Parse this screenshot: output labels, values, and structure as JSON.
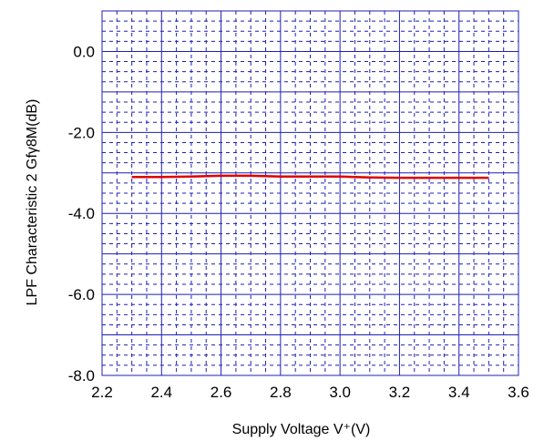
{
  "chart_data": {
    "type": "line",
    "title": "",
    "xlabel": "Supply Voltage  V⁺(V)",
    "ylabel": "LPF Characteristic 2  Gfγ8M(dB)",
    "xlim": [
      2.2,
      3.6
    ],
    "ylim": [
      -8.0,
      1.0
    ],
    "x_ticks": [
      2.2,
      2.4,
      2.6,
      2.8,
      3.0,
      3.2,
      3.4,
      3.6
    ],
    "y_ticks": [
      0.0,
      -2.0,
      -4.0,
      -6.0,
      -8.0
    ],
    "x_tick_labels": [
      "2.2",
      "2.4",
      "2.6",
      "2.8",
      "3.0",
      "3.2",
      "3.4",
      "3.6"
    ],
    "y_tick_labels": [
      "0.0",
      "-2.0",
      "-4.0",
      "-6.0",
      "-8.0"
    ],
    "x_minor_step": 0.05,
    "y_minor_step": 0.25,
    "grid": true,
    "legend": "none",
    "colors": {
      "series": "#dd0000",
      "grid": "#1f1fb8"
    },
    "series": [
      {
        "x": [
          2.3,
          2.4,
          2.5,
          2.6,
          2.7,
          2.8,
          2.9,
          3.0,
          3.1,
          3.2,
          3.3,
          3.4,
          3.5
        ],
        "values": [
          -3.1,
          -3.1,
          -3.09,
          -3.07,
          -3.07,
          -3.09,
          -3.09,
          -3.09,
          -3.11,
          -3.12,
          -3.12,
          -3.12,
          -3.12
        ]
      }
    ]
  }
}
